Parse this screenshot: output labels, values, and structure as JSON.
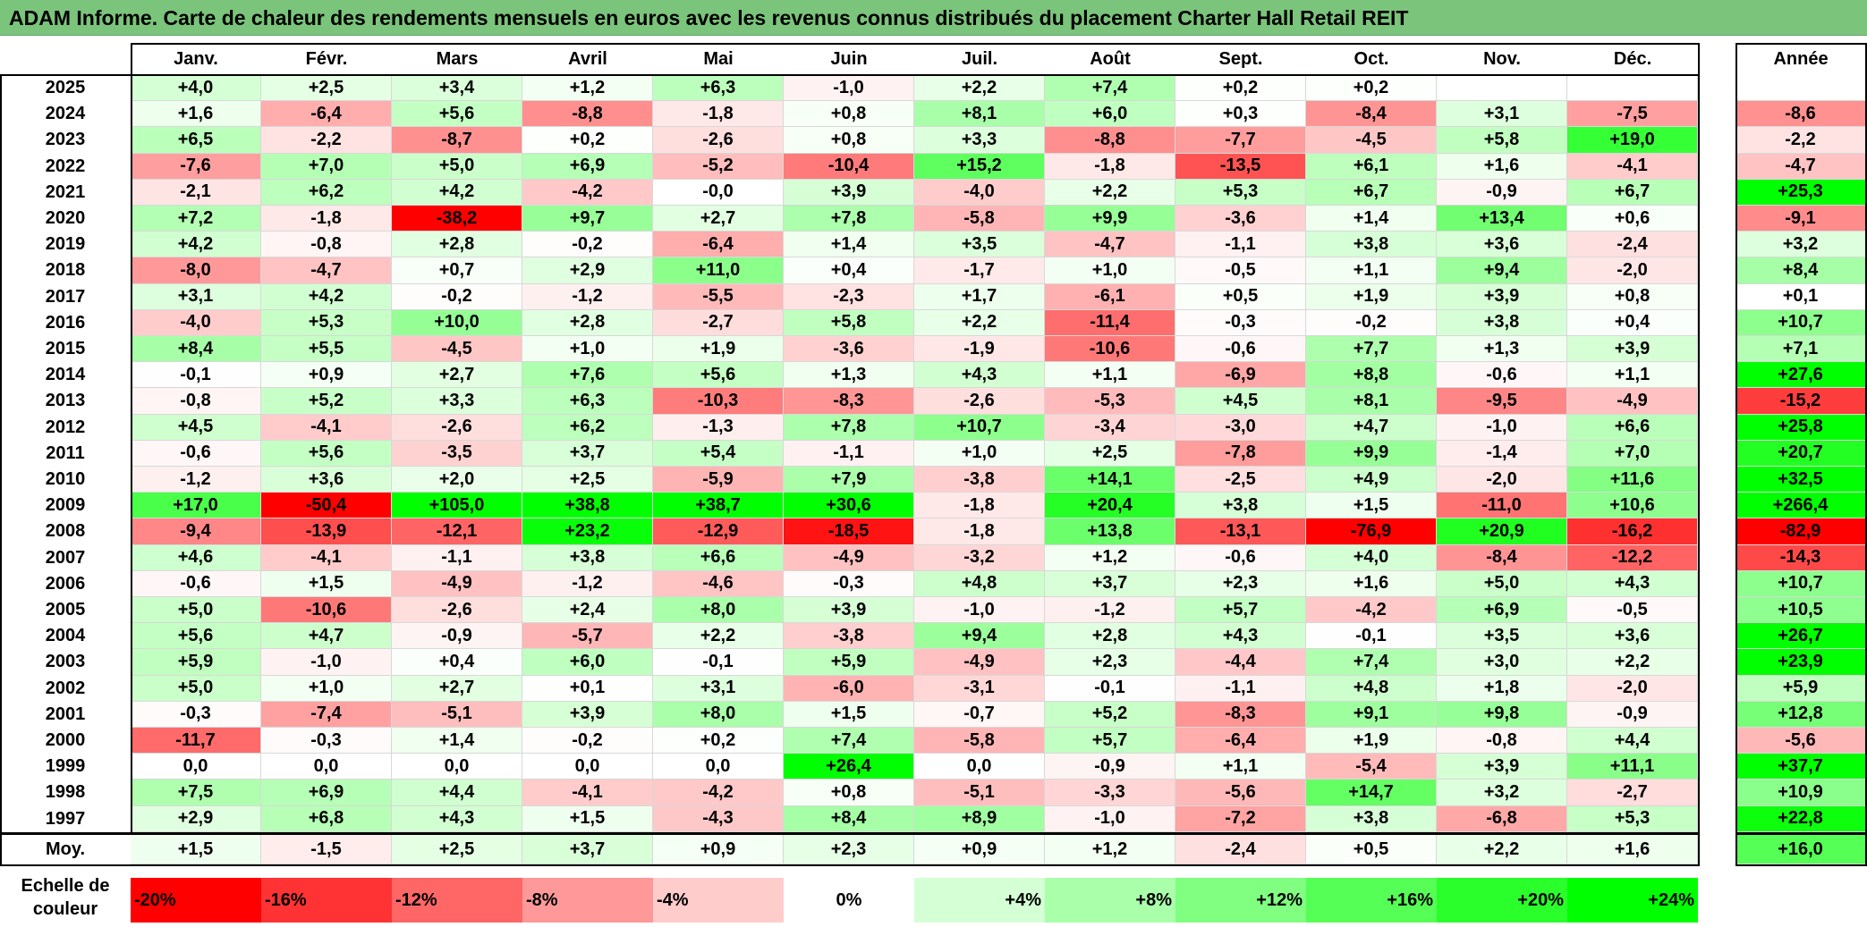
{
  "title": "ADAM Informe. Carte de chaleur des rendements mensuels en euros avec les revenus connus distribués du placement Charter Hall Retail REIT",
  "chart_data": {
    "type": "heatmap",
    "title": "ADAM Informe. Carte de chaleur des rendements mensuels en euros avec les revenus connus distribués du placement Charter Hall Retail REIT",
    "columns": [
      "Janv.",
      "Févr.",
      "Mars",
      "Avril",
      "Mai",
      "Juin",
      "Juil.",
      "Août",
      "Sept.",
      "Oct.",
      "Nov.",
      "Déc."
    ],
    "year_column_label": "Année",
    "average_row_label": "Moy.",
    "rows": [
      {
        "year": "2025",
        "months": [
          "+4,0",
          "+2,5",
          "+3,4",
          "+1,2",
          "+6,3",
          "-1,0",
          "+2,2",
          "+7,4",
          "+0,2",
          "+0,2",
          "",
          ""
        ],
        "annual": ""
      },
      {
        "year": "2024",
        "months": [
          "+1,6",
          "-6,4",
          "+5,6",
          "-8,8",
          "-1,8",
          "+0,8",
          "+8,1",
          "+6,0",
          "+0,3",
          "-8,4",
          "+3,1",
          "-7,5"
        ],
        "annual": "-8,6"
      },
      {
        "year": "2023",
        "months": [
          "+6,5",
          "-2,2",
          "-8,7",
          "+0,2",
          "-2,6",
          "+0,8",
          "+3,3",
          "-8,8",
          "-7,7",
          "-4,5",
          "+5,8",
          "+19,0"
        ],
        "annual": "-2,2"
      },
      {
        "year": "2022",
        "months": [
          "-7,6",
          "+7,0",
          "+5,0",
          "+6,9",
          "-5,2",
          "-10,4",
          "+15,2",
          "-1,8",
          "-13,5",
          "+6,1",
          "+1,6",
          "-4,1"
        ],
        "annual": "-4,7"
      },
      {
        "year": "2021",
        "months": [
          "-2,1",
          "+6,2",
          "+4,2",
          "-4,2",
          "-0,0",
          "+3,9",
          "-4,0",
          "+2,2",
          "+5,3",
          "+6,7",
          "-0,9",
          "+6,7"
        ],
        "annual": "+25,3"
      },
      {
        "year": "2020",
        "months": [
          "+7,2",
          "-1,8",
          "-38,2",
          "+9,7",
          "+2,7",
          "+7,8",
          "-5,8",
          "+9,9",
          "-3,6",
          "+1,4",
          "+13,4",
          "+0,6"
        ],
        "annual": "-9,1"
      },
      {
        "year": "2019",
        "months": [
          "+4,2",
          "-0,8",
          "+2,8",
          "-0,2",
          "-6,4",
          "+1,4",
          "+3,5",
          "-4,7",
          "-1,1",
          "+3,8",
          "+3,6",
          "-2,4"
        ],
        "annual": "+3,2"
      },
      {
        "year": "2018",
        "months": [
          "-8,0",
          "-4,7",
          "+0,7",
          "+2,9",
          "+11,0",
          "+0,4",
          "-1,7",
          "+1,0",
          "-0,5",
          "+1,1",
          "+9,4",
          "-2,0"
        ],
        "annual": "+8,4"
      },
      {
        "year": "2017",
        "months": [
          "+3,1",
          "+4,2",
          "-0,2",
          "-1,2",
          "-5,5",
          "-2,3",
          "+1,7",
          "-6,1",
          "+0,5",
          "+1,9",
          "+3,9",
          "+0,8"
        ],
        "annual": "+0,1"
      },
      {
        "year": "2016",
        "months": [
          "-4,0",
          "+5,3",
          "+10,0",
          "+2,8",
          "-2,7",
          "+5,8",
          "+2,2",
          "-11,4",
          "-0,3",
          "-0,2",
          "+3,8",
          "+0,4"
        ],
        "annual": "+10,7"
      },
      {
        "year": "2015",
        "months": [
          "+8,4",
          "+5,5",
          "-4,5",
          "+1,0",
          "+1,9",
          "-3,6",
          "-1,9",
          "-10,6",
          "-0,6",
          "+7,7",
          "+1,3",
          "+3,9"
        ],
        "annual": "+7,1"
      },
      {
        "year": "2014",
        "months": [
          "-0,1",
          "+0,9",
          "+2,7",
          "+7,6",
          "+5,6",
          "+1,3",
          "+4,3",
          "+1,1",
          "-6,9",
          "+8,8",
          "-0,6",
          "+1,1"
        ],
        "annual": "+27,6"
      },
      {
        "year": "2013",
        "months": [
          "-0,8",
          "+5,2",
          "+3,3",
          "+6,3",
          "-10,3",
          "-8,3",
          "-2,6",
          "-5,3",
          "+4,5",
          "+8,1",
          "-9,5",
          "-4,9"
        ],
        "annual": "-15,2"
      },
      {
        "year": "2012",
        "months": [
          "+4,5",
          "-4,1",
          "-2,6",
          "+6,2",
          "-1,3",
          "+7,8",
          "+10,7",
          "-3,4",
          "-3,0",
          "+4,7",
          "-1,0",
          "+6,6"
        ],
        "annual": "+25,8"
      },
      {
        "year": "2011",
        "months": [
          "-0,6",
          "+5,6",
          "-3,5",
          "+3,7",
          "+5,4",
          "-1,1",
          "+1,0",
          "+2,5",
          "-7,8",
          "+9,9",
          "-1,4",
          "+7,0"
        ],
        "annual": "+20,7"
      },
      {
        "year": "2010",
        "months": [
          "-1,2",
          "+3,6",
          "+2,0",
          "+2,5",
          "-5,9",
          "+7,9",
          "-3,8",
          "+14,1",
          "-2,5",
          "+4,9",
          "-2,0",
          "+11,6"
        ],
        "annual": "+32,5"
      },
      {
        "year": "2009",
        "months": [
          "+17,0",
          "-50,4",
          "+105,0",
          "+38,8",
          "+38,7",
          "+30,6",
          "-1,8",
          "+20,4",
          "+3,8",
          "+1,5",
          "-11,0",
          "+10,6"
        ],
        "annual": "+266,4"
      },
      {
        "year": "2008",
        "months": [
          "-9,4",
          "-13,9",
          "-12,1",
          "+23,2",
          "-12,9",
          "-18,5",
          "-1,8",
          "+13,8",
          "-13,1",
          "-76,9",
          "+20,9",
          "-16,2"
        ],
        "annual": "-82,9"
      },
      {
        "year": "2007",
        "months": [
          "+4,6",
          "-4,1",
          "-1,1",
          "+3,8",
          "+6,6",
          "-4,9",
          "-3,2",
          "+1,2",
          "-0,6",
          "+4,0",
          "-8,4",
          "-12,2"
        ],
        "annual": "-14,3"
      },
      {
        "year": "2006",
        "months": [
          "-0,6",
          "+1,5",
          "-4,9",
          "-1,2",
          "-4,6",
          "-0,3",
          "+4,8",
          "+3,7",
          "+2,3",
          "+1,6",
          "+5,0",
          "+4,3"
        ],
        "annual": "+10,7"
      },
      {
        "year": "2005",
        "months": [
          "+5,0",
          "-10,6",
          "-2,6",
          "+2,4",
          "+8,0",
          "+3,9",
          "-1,0",
          "-1,2",
          "+5,7",
          "-4,2",
          "+6,9",
          "-0,5"
        ],
        "annual": "+10,5"
      },
      {
        "year": "2004",
        "months": [
          "+5,6",
          "+4,7",
          "-0,9",
          "-5,7",
          "+2,2",
          "-3,8",
          "+9,4",
          "+2,8",
          "+4,3",
          "-0,1",
          "+3,5",
          "+3,6"
        ],
        "annual": "+26,7"
      },
      {
        "year": "2003",
        "months": [
          "+5,9",
          "-1,0",
          "+0,4",
          "+6,0",
          "-0,1",
          "+5,9",
          "-4,9",
          "+2,3",
          "-4,4",
          "+7,4",
          "+3,0",
          "+2,2"
        ],
        "annual": "+23,9"
      },
      {
        "year": "2002",
        "months": [
          "+5,0",
          "+1,0",
          "+2,7",
          "+0,1",
          "+3,1",
          "-6,0",
          "-3,1",
          "-0,1",
          "-1,1",
          "+4,8",
          "+1,8",
          "-2,0"
        ],
        "annual": "+5,9"
      },
      {
        "year": "2001",
        "months": [
          "-0,3",
          "-7,4",
          "-5,1",
          "+3,9",
          "+8,0",
          "+1,5",
          "-0,7",
          "+5,2",
          "-8,3",
          "+9,1",
          "+9,8",
          "-0,9"
        ],
        "annual": "+12,8"
      },
      {
        "year": "2000",
        "months": [
          "-11,7",
          "-0,3",
          "+1,4",
          "-0,2",
          "+0,2",
          "+7,4",
          "-5,8",
          "+5,7",
          "-6,4",
          "+1,9",
          "-0,8",
          "+4,4"
        ],
        "annual": "-5,6"
      },
      {
        "year": "1999",
        "months": [
          "0,0",
          "0,0",
          "0,0",
          "0,0",
          "0,0",
          "+26,4",
          "0,0",
          "-0,9",
          "+1,1",
          "-5,4",
          "+3,9",
          "+11,1"
        ],
        "annual": "+37,7"
      },
      {
        "year": "1998",
        "months": [
          "+7,5",
          "+6,9",
          "+4,4",
          "-4,1",
          "-4,2",
          "+0,8",
          "-5,1",
          "-3,3",
          "-5,6",
          "+14,7",
          "+3,2",
          "-2,7"
        ],
        "annual": "+10,9"
      },
      {
        "year": "1997",
        "months": [
          "+2,9",
          "+6,8",
          "+4,3",
          "+1,5",
          "-4,3",
          "+8,4",
          "+8,9",
          "-1,0",
          "-7,2",
          "+3,8",
          "-6,8",
          "+5,3"
        ],
        "annual": "+22,8"
      }
    ],
    "average": {
      "months": [
        "+1,5",
        "-1,5",
        "+2,5",
        "+3,7",
        "+0,9",
        "+2,3",
        "+0,9",
        "+1,2",
        "-2,4",
        "+0,5",
        "+2,2",
        "+1,6"
      ],
      "annual": "+16,0"
    },
    "color_scale": {
      "title": "Echelle de couleur",
      "labels": [
        "-20%",
        "-16%",
        "-12%",
        "-8%",
        "-4%",
        "0%",
        "+4%",
        "+8%",
        "+12%",
        "+16%",
        "+20%",
        "+24%"
      ],
      "values": [
        -20,
        -16,
        -12,
        -8,
        -4,
        0,
        4,
        8,
        12,
        16,
        20,
        24
      ],
      "negative_color": "#ff0000",
      "positive_color": "#00ff00",
      "neutral_color": "#ffffff"
    }
  }
}
